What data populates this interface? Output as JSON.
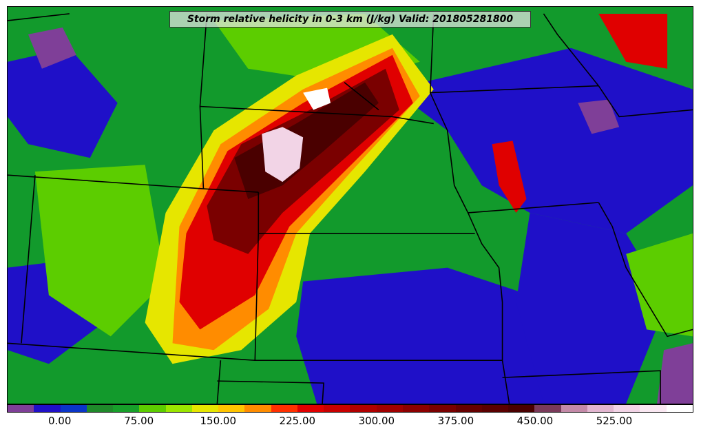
{
  "title": "Storm relative helicity in 0-3 km (J/kg) Valid: 201805281800",
  "map": {
    "field": "Storm relative helicity 0-3 km",
    "units": "J/kg",
    "valid_time": "201805281800",
    "background_color": "#129a2c"
  },
  "colorbar": {
    "colors": [
      "#7f3f98",
      "#1f10c8",
      "#0a35c8",
      "#1f8a2a",
      "#17a02a",
      "#5ccd00",
      "#9be600",
      "#e6e600",
      "#ffc400",
      "#ff8c00",
      "#ff3000",
      "#e00000",
      "#c80000",
      "#b00000",
      "#a00000",
      "#8c0000",
      "#7a0000",
      "#660000",
      "#5a0000",
      "#4a0000",
      "#7a3a5a",
      "#c48aa8",
      "#e2b6d0",
      "#f2d4e6",
      "#fae8f2",
      "#ffffff"
    ],
    "tick_labels": [
      {
        "label": "0.00",
        "value": 0
      },
      {
        "label": "75.00",
        "value": 75
      },
      {
        "label": "150.00",
        "value": 150
      },
      {
        "label": "225.00",
        "value": 225
      },
      {
        "label": "300.00",
        "value": 300
      },
      {
        "label": "375.00",
        "value": 375
      },
      {
        "label": "450.00",
        "value": 450
      },
      {
        "label": "525.00",
        "value": 525
      }
    ],
    "min": -50,
    "max": 600
  }
}
